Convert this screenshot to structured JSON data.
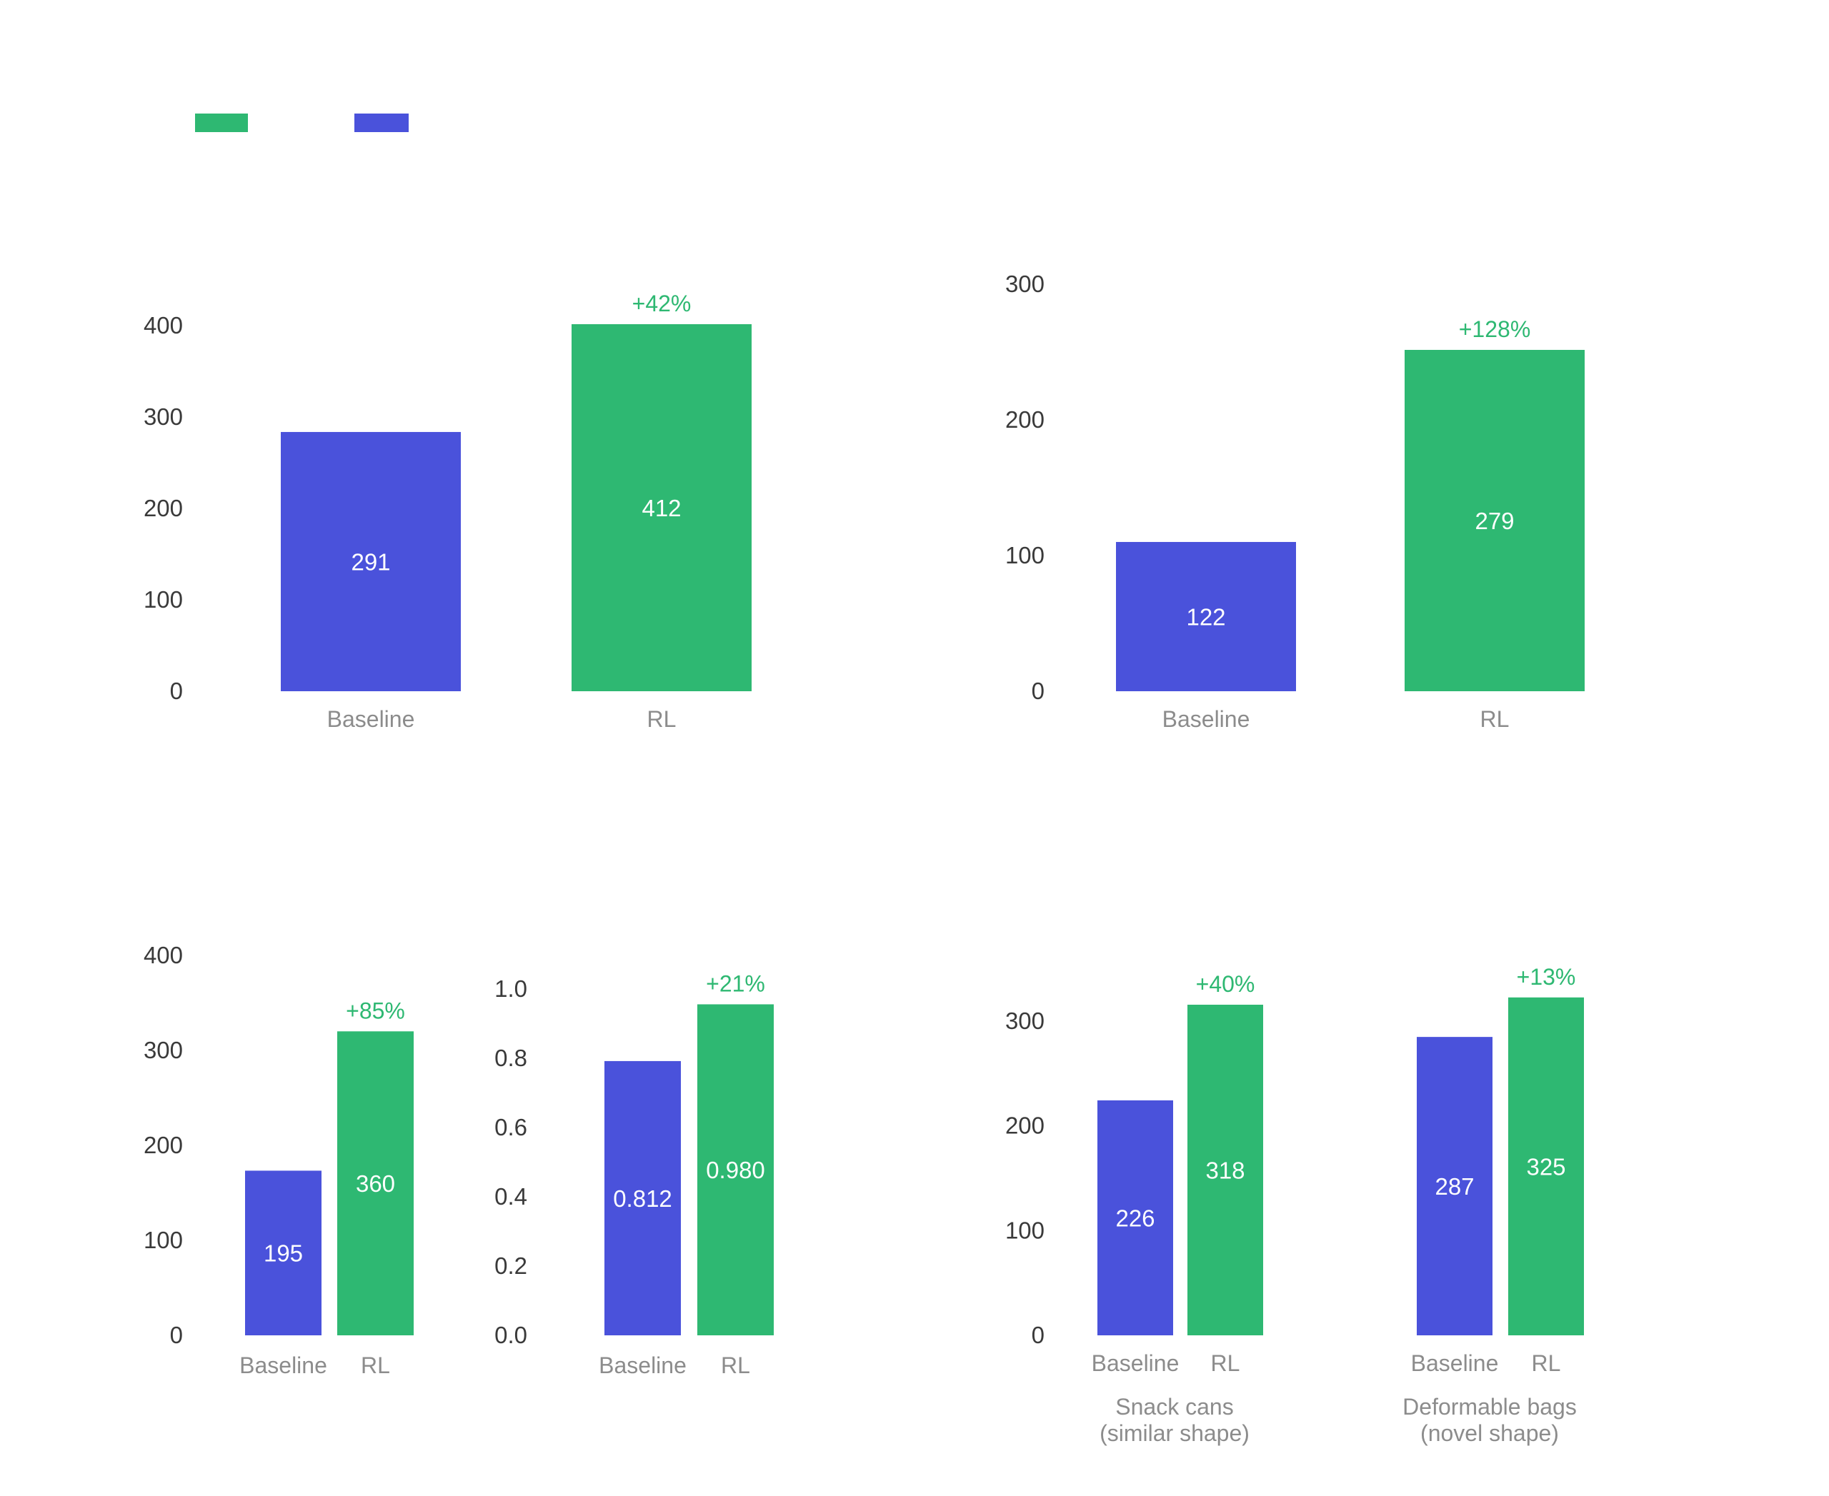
{
  "colors": {
    "baseline": "#4A52DB",
    "rl": "#2EB872",
    "tick_text": "#3A3A3A",
    "category_text": "#8C8C8C",
    "value_text": "#FFFFFF",
    "delta_text": "#2EB872"
  },
  "legend": {
    "entries": [
      {
        "series": "rl",
        "label": ""
      },
      {
        "series": "baseline",
        "label": ""
      }
    ]
  },
  "chart_data": [
    {
      "type": "bar",
      "categories": [
        "Baseline",
        "RL"
      ],
      "values": [
        291,
        412
      ],
      "value_labels": [
        "291",
        "412"
      ],
      "delta_label": "+42%",
      "ylim": [
        0,
        412
      ],
      "yticks": [
        "0",
        "100",
        "200",
        "300",
        "400"
      ]
    },
    {
      "type": "bar",
      "categories": [
        "Baseline",
        "RL"
      ],
      "values": [
        122,
        279
      ],
      "value_labels": [
        "122",
        "279"
      ],
      "delta_label": "+128%",
      "ylim": [
        0,
        300
      ],
      "yticks": [
        "0",
        "100",
        "200",
        "300"
      ]
    },
    {
      "type": "bar",
      "categories": [
        "Baseline",
        "RL"
      ],
      "values": [
        195,
        360
      ],
      "value_labels": [
        "195",
        "360"
      ],
      "delta_label": "+85%",
      "ylim": [
        0,
        400
      ],
      "yticks": [
        "0",
        "100",
        "200",
        "300",
        "400"
      ]
    },
    {
      "type": "bar",
      "categories": [
        "Baseline",
        "RL"
      ],
      "values": [
        0.812,
        0.98
      ],
      "value_labels": [
        "0.812",
        "0.980"
      ],
      "delta_label": "+21%",
      "ylim": [
        0,
        1.0
      ],
      "yticks": [
        "0.0",
        "0.2",
        "0.4",
        "0.6",
        "0.8",
        "1.0"
      ]
    },
    {
      "type": "bar",
      "ylim": [
        0,
        318
      ],
      "yticks": [
        "0",
        "100",
        "200",
        "300"
      ],
      "groups": [
        {
          "group_label": [
            "Snack cans",
            "(similar shape)"
          ],
          "categories": [
            "Baseline",
            "RL"
          ],
          "values": [
            226,
            318
          ],
          "value_labels": [
            "226",
            "318"
          ],
          "delta_label": "+40%"
        },
        {
          "group_label": [
            "Deformable bags",
            "(novel shape)"
          ],
          "categories": [
            "Baseline",
            "RL"
          ],
          "values": [
            287,
            325
          ],
          "value_labels": [
            "287",
            "325"
          ],
          "delta_label": "+13%"
        }
      ]
    }
  ]
}
